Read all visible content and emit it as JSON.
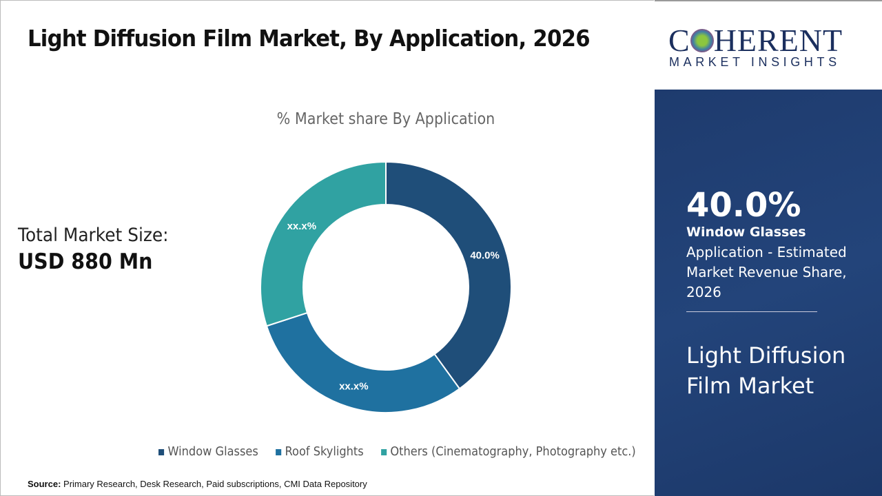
{
  "header": {
    "title": "Light Diffusion Film Market, By Application, 2026"
  },
  "total": {
    "label": "Total Market Size:",
    "value": "USD 880 Mn"
  },
  "chart_data": {
    "type": "pie",
    "donut": true,
    "title": "% Market share By Application",
    "categories": [
      "Window Glasses",
      "Roof Skylights",
      "Others (Cinematography, Photography etc.)"
    ],
    "values": [
      40,
      30,
      30
    ],
    "data_labels": [
      "40.0%",
      "xx.x%",
      "xx.x%"
    ],
    "colors": [
      "#1f4e79",
      "#1f71a0",
      "#30a2a2"
    ],
    "legend_position": "bottom"
  },
  "source": {
    "label": "Source:",
    "text": "Primary Research, Desk Research, Paid subscriptions, CMI Data Repository"
  },
  "logo": {
    "line1": "COHERENT",
    "line2": "MARKET INSIGHTS"
  },
  "panel": {
    "percent": "40.0%",
    "segment": "Window Glasses",
    "description": "Application - Estimated Market Revenue Share, 2026",
    "market": "Light Diffusion Film Market"
  }
}
